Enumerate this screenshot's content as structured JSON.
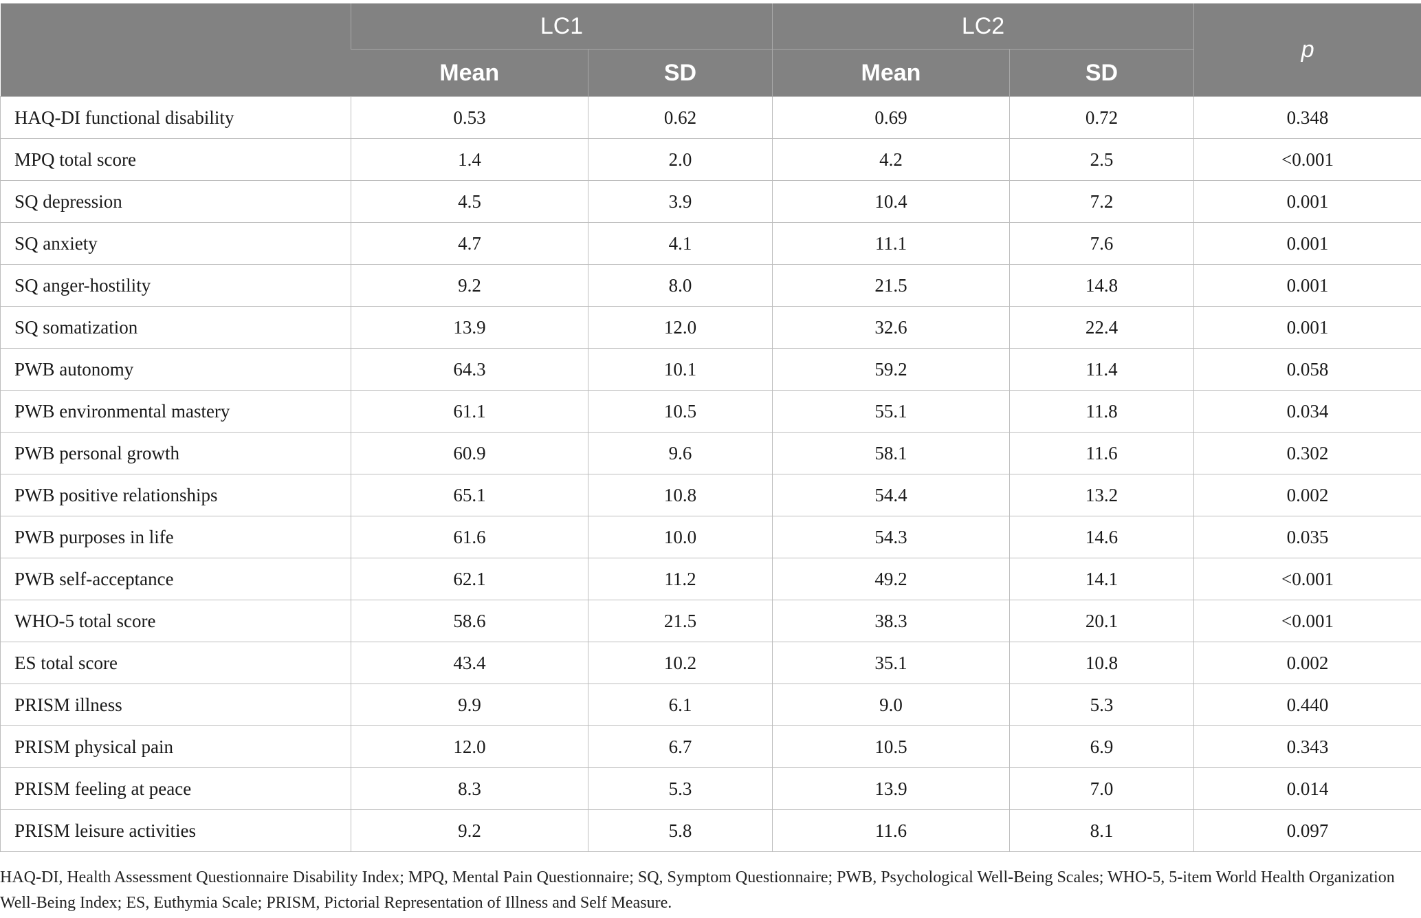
{
  "header": {
    "group1": "LC1",
    "group2": "LC2",
    "p_label": "p",
    "mean_label": "Mean",
    "sd_label": "SD"
  },
  "rows": [
    {
      "label": "HAQ-DI functional disability",
      "lc1_mean": "0.53",
      "lc1_sd": "0.62",
      "lc2_mean": "0.69",
      "lc2_sd": "0.72",
      "p": "0.348"
    },
    {
      "label": "MPQ total score",
      "lc1_mean": "1.4",
      "lc1_sd": "2.0",
      "lc2_mean": "4.2",
      "lc2_sd": "2.5",
      "p": "<0.001"
    },
    {
      "label": "SQ depression",
      "lc1_mean": "4.5",
      "lc1_sd": "3.9",
      "lc2_mean": "10.4",
      "lc2_sd": "7.2",
      "p": "0.001"
    },
    {
      "label": "SQ anxiety",
      "lc1_mean": "4.7",
      "lc1_sd": "4.1",
      "lc2_mean": "11.1",
      "lc2_sd": "7.6",
      "p": "0.001"
    },
    {
      "label": "SQ anger-hostility",
      "lc1_mean": "9.2",
      "lc1_sd": "8.0",
      "lc2_mean": "21.5",
      "lc2_sd": "14.8",
      "p": "0.001"
    },
    {
      "label": "SQ somatization",
      "lc1_mean": "13.9",
      "lc1_sd": "12.0",
      "lc2_mean": "32.6",
      "lc2_sd": "22.4",
      "p": "0.001"
    },
    {
      "label": "PWB autonomy",
      "lc1_mean": "64.3",
      "lc1_sd": "10.1",
      "lc2_mean": "59.2",
      "lc2_sd": "11.4",
      "p": "0.058"
    },
    {
      "label": "PWB environmental mastery",
      "lc1_mean": "61.1",
      "lc1_sd": "10.5",
      "lc2_mean": "55.1",
      "lc2_sd": "11.8",
      "p": "0.034"
    },
    {
      "label": "PWB personal growth",
      "lc1_mean": "60.9",
      "lc1_sd": "9.6",
      "lc2_mean": "58.1",
      "lc2_sd": "11.6",
      "p": "0.302"
    },
    {
      "label": "PWB positive relationships",
      "lc1_mean": "65.1",
      "lc1_sd": "10.8",
      "lc2_mean": "54.4",
      "lc2_sd": "13.2",
      "p": "0.002"
    },
    {
      "label": "PWB purposes in life",
      "lc1_mean": "61.6",
      "lc1_sd": "10.0",
      "lc2_mean": "54.3",
      "lc2_sd": "14.6",
      "p": "0.035"
    },
    {
      "label": "PWB self-acceptance",
      "lc1_mean": "62.1",
      "lc1_sd": "11.2",
      "lc2_mean": "49.2",
      "lc2_sd": "14.1",
      "p": "<0.001"
    },
    {
      "label": "WHO-5 total score",
      "lc1_mean": "58.6",
      "lc1_sd": "21.5",
      "lc2_mean": "38.3",
      "lc2_sd": "20.1",
      "p": "<0.001"
    },
    {
      "label": "ES total score",
      "lc1_mean": "43.4",
      "lc1_sd": "10.2",
      "lc2_mean": "35.1",
      "lc2_sd": "10.8",
      "p": "0.002"
    },
    {
      "label": "PRISM illness",
      "lc1_mean": "9.9",
      "lc1_sd": "6.1",
      "lc2_mean": "9.0",
      "lc2_sd": "5.3",
      "p": "0.440"
    },
    {
      "label": "PRISM physical pain",
      "lc1_mean": "12.0",
      "lc1_sd": "6.7",
      "lc2_mean": "10.5",
      "lc2_sd": "6.9",
      "p": "0.343"
    },
    {
      "label": "PRISM feeling at peace",
      "lc1_mean": "8.3",
      "lc1_sd": "5.3",
      "lc2_mean": "13.9",
      "lc2_sd": "7.0",
      "p": "0.014"
    },
    {
      "label": "PRISM leisure activities",
      "lc1_mean": "9.2",
      "lc1_sd": "5.8",
      "lc2_mean": "11.6",
      "lc2_sd": "8.1",
      "p": "0.097"
    }
  ],
  "footnote": "HAQ-DI, Health Assessment Questionnaire Disability Index; MPQ, Mental Pain Questionnaire; SQ, Symptom Questionnaire; PWB, Psychological Well-Being Scales; WHO-5, 5-item World Health Organization Well-Being Index; ES, Euthymia Scale; PRISM, Pictorial Representation of Illness and Self Measure."
}
